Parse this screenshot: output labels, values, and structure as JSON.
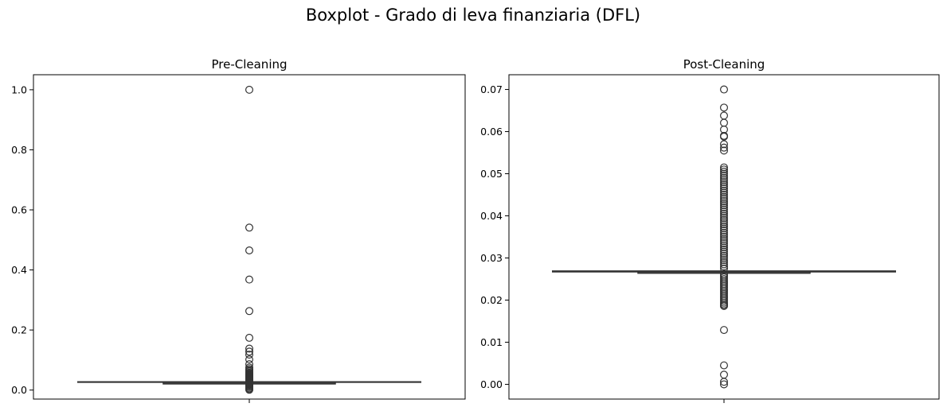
{
  "figure": {
    "suptitle": "Boxplot - Grado di leva finanziaria (DFL)"
  },
  "chart_data": [
    {
      "type": "box",
      "title": "Pre-Cleaning",
      "xlabel": "",
      "ylabel": "",
      "ylim": [
        -0.03,
        1.05
      ],
      "yticks": [
        0.0,
        0.2,
        0.4,
        0.6,
        0.8,
        1.0
      ],
      "ytick_labels": [
        "0.0",
        "0.2",
        "0.4",
        "0.6",
        "0.8",
        "1.0"
      ],
      "box": {
        "q1": 0.0265,
        "median": 0.0268,
        "q3": 0.0271,
        "whisker_low": 0.0262,
        "whisker_high": 0.0274
      },
      "outliers": [
        1.0,
        0.541,
        0.465,
        0.368,
        0.263,
        0.174,
        0.138,
        0.128,
        0.118,
        0.102,
        0.086,
        0.075,
        0.07,
        0.066,
        0.062,
        0.058,
        0.055,
        0.052,
        0.05,
        0.048,
        0.046,
        0.044,
        0.042,
        0.04,
        0.038,
        0.036,
        0.034,
        0.032,
        0.03,
        0.028,
        0.024,
        0.022,
        0.02,
        0.018,
        0.016,
        0.013,
        0.01,
        0.006,
        0.003,
        0.001
      ],
      "grid": false,
      "color": "#333333"
    },
    {
      "type": "box",
      "title": "Post-Cleaning",
      "xlabel": "",
      "ylabel": "",
      "ylim": [
        -0.0035,
        0.0735
      ],
      "yticks": [
        0.0,
        0.01,
        0.02,
        0.03,
        0.04,
        0.05,
        0.06,
        0.07
      ],
      "ytick_labels": [
        "0.00",
        "0.01",
        "0.02",
        "0.03",
        "0.04",
        "0.05",
        "0.06",
        "0.07"
      ],
      "box": {
        "q1": 0.02675,
        "median": 0.0268,
        "q3": 0.02685,
        "whisker_low": 0.0267,
        "whisker_high": 0.0269
      },
      "outliers": [
        0.07,
        0.0657,
        0.0638,
        0.0621,
        0.0605,
        0.059,
        0.0588,
        0.057,
        0.0562,
        0.0555,
        0.0515,
        0.051,
        0.0505,
        0.05,
        0.0495,
        0.049,
        0.0485,
        0.048,
        0.0475,
        0.047,
        0.0465,
        0.046,
        0.0455,
        0.045,
        0.0445,
        0.044,
        0.0435,
        0.043,
        0.0425,
        0.042,
        0.0415,
        0.041,
        0.0405,
        0.04,
        0.0395,
        0.039,
        0.0385,
        0.038,
        0.0375,
        0.037,
        0.0365,
        0.036,
        0.0355,
        0.035,
        0.0345,
        0.034,
        0.0335,
        0.033,
        0.0325,
        0.032,
        0.0315,
        0.031,
        0.0305,
        0.03,
        0.0295,
        0.029,
        0.0285,
        0.028,
        0.0275,
        0.0262,
        0.0258,
        0.0254,
        0.025,
        0.0246,
        0.0242,
        0.0238,
        0.0234,
        0.023,
        0.0226,
        0.0222,
        0.0218,
        0.0214,
        0.021,
        0.0206,
        0.0202,
        0.0198,
        0.0194,
        0.019,
        0.0187,
        0.0186,
        0.0129,
        0.0045,
        0.0023,
        0.0006,
        0.0
      ],
      "grid": false,
      "color": "#333333"
    }
  ]
}
